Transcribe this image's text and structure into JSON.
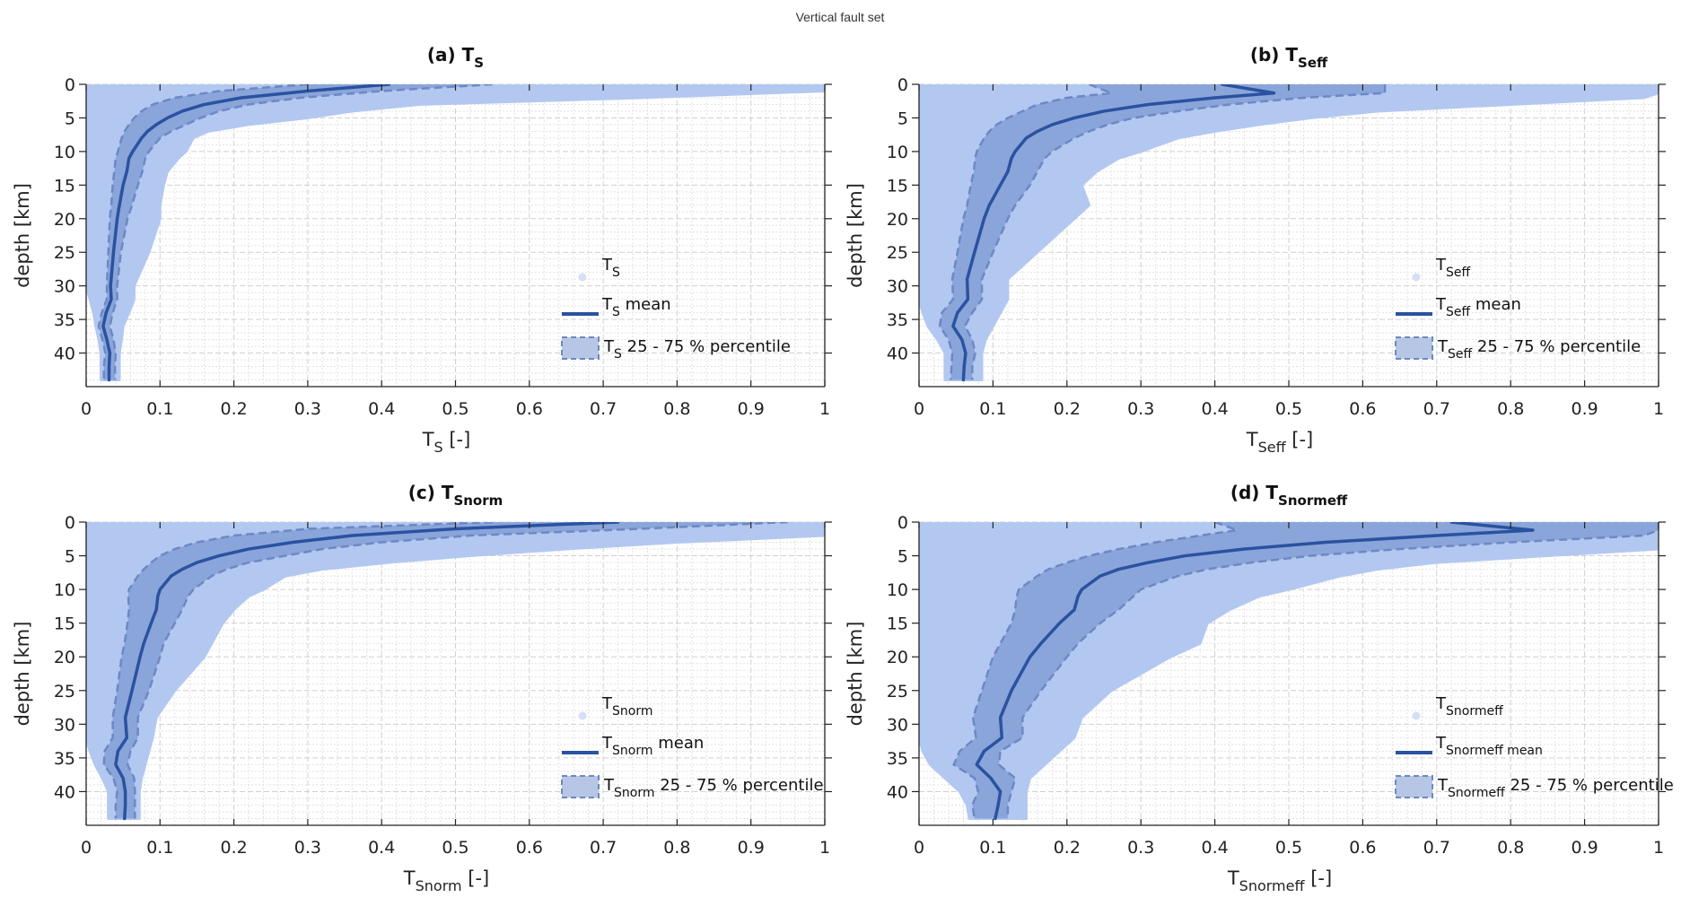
{
  "figure": {
    "suptitle": "Vertical fault set"
  },
  "colors": {
    "scatter": "#b3c8f0",
    "band": "#8aa5da",
    "band_edge": "#6d88c4",
    "mean": "#2a52a0",
    "legend_marker": "#d5e0f7",
    "legend_patch": "#b8c6e6",
    "grid_major": "#d0d0d0",
    "grid_minor": "#e2e2e2",
    "axis": "#222222"
  },
  "chart_data": [
    {
      "type": "area",
      "panel": "a",
      "title": {
        "prefix": "(a) T",
        "sub": "S"
      },
      "xlabel": {
        "main": "T",
        "sub": "S",
        "suffix": " [-]"
      },
      "ylabel": "depth [km]",
      "xlim": [
        0,
        1
      ],
      "ylim": [
        0,
        45
      ],
      "y_reversed": true,
      "xticks": [
        "0",
        "0.1",
        "0.2",
        "0.3",
        "0.4",
        "0.5",
        "0.6",
        "0.7",
        "0.8",
        "0.9",
        "1"
      ],
      "yticks": [
        "0",
        "5",
        "10",
        "15",
        "20",
        "25",
        "30",
        "35",
        "40"
      ],
      "grid": true,
      "legend": {
        "placement": "bottom-right",
        "entries": [
          {
            "main": "T",
            "sub": "S",
            "suffix": ""
          },
          {
            "main": "T",
            "sub": "S",
            "suffix": " mean"
          },
          {
            "main": "T",
            "sub": "S",
            "suffix": " 25  - 75 % percentile"
          }
        ]
      },
      "depth": [
        0,
        1,
        2,
        3,
        4,
        5,
        6,
        7,
        8,
        10,
        11,
        13,
        15,
        18,
        20,
        25,
        30,
        32,
        34,
        36,
        38,
        40,
        42,
        44
      ],
      "mean": [
        0.41,
        0.3,
        0.21,
        0.16,
        0.13,
        0.11,
        0.095,
        0.083,
        0.075,
        0.063,
        0.058,
        0.055,
        0.05,
        0.045,
        0.042,
        0.037,
        0.033,
        0.034,
        0.027,
        0.023,
        0.028,
        0.032,
        0.031,
        0.031
      ],
      "p25": [
        0.3,
        0.18,
        0.12,
        0.09,
        0.075,
        0.065,
        0.058,
        0.052,
        0.048,
        0.043,
        0.04,
        0.038,
        0.036,
        0.034,
        0.032,
        0.03,
        0.028,
        0.028,
        0.021,
        0.017,
        0.022,
        0.026,
        0.024,
        0.024
      ],
      "p75": [
        0.55,
        0.4,
        0.29,
        0.22,
        0.18,
        0.155,
        0.135,
        0.115,
        0.1,
        0.085,
        0.08,
        0.076,
        0.07,
        0.062,
        0.056,
        0.047,
        0.042,
        0.042,
        0.036,
        0.032,
        0.037,
        0.04,
        0.039,
        0.039
      ],
      "scatter_min": [
        0,
        0,
        0,
        0,
        0,
        0,
        0,
        0,
        0,
        0,
        0,
        0,
        0,
        0,
        0,
        0,
        0,
        0.005,
        0.01,
        0.013,
        0.017,
        0.02,
        0.02,
        0.02
      ],
      "scatter_max": [
        1.0,
        1.0,
        0.75,
        0.45,
        0.36,
        0.3,
        0.22,
        0.165,
        0.145,
        0.135,
        0.125,
        0.11,
        0.105,
        0.1,
        0.1,
        0.085,
        0.065,
        0.065,
        0.058,
        0.05,
        0.048,
        0.045,
        0.045,
        0.045
      ]
    },
    {
      "type": "area",
      "panel": "b",
      "title": {
        "prefix": "(b) T",
        "sub": "Seff"
      },
      "xlabel": {
        "main": "T",
        "sub": "Seff",
        "suffix": " [-]"
      },
      "ylabel": "depth [km]",
      "xlim": [
        0,
        1
      ],
      "ylim": [
        0,
        45
      ],
      "y_reversed": true,
      "xticks": [
        "0",
        "0.1",
        "0.2",
        "0.3",
        "0.4",
        "0.5",
        "0.6",
        "0.7",
        "0.8",
        "0.9",
        "1"
      ],
      "yticks": [
        "0",
        "5",
        "10",
        "15",
        "20",
        "25",
        "30",
        "35",
        "40"
      ],
      "grid": true,
      "legend": {
        "placement": "bottom-right",
        "entries": [
          {
            "main": "T",
            "sub": "Seff",
            "suffix": ""
          },
          {
            "main": "T",
            "sub": "Seff",
            "suffix": " mean"
          },
          {
            "main": "T",
            "sub": "Seff",
            "suffix": " 25  - 75 % percentile"
          }
        ]
      },
      "depth": [
        0,
        1.3,
        2,
        3,
        4,
        5,
        6,
        7,
        8,
        10,
        11,
        13,
        15,
        18,
        20,
        25,
        29,
        32,
        34,
        36,
        38,
        40,
        42,
        44
      ],
      "mean": [
        0.41,
        0.48,
        0.4,
        0.31,
        0.25,
        0.21,
        0.18,
        0.16,
        0.145,
        0.13,
        0.125,
        0.12,
        0.11,
        0.095,
        0.088,
        0.075,
        0.065,
        0.066,
        0.052,
        0.046,
        0.058,
        0.063,
        0.061,
        0.06
      ],
      "p25": [
        0.23,
        0.26,
        0.2,
        0.16,
        0.14,
        0.12,
        0.105,
        0.095,
        0.088,
        0.078,
        0.076,
        0.074,
        0.07,
        0.065,
        0.06,
        0.052,
        0.045,
        0.046,
        0.031,
        0.028,
        0.04,
        0.045,
        0.044,
        0.043
      ],
      "p75": [
        0.63,
        0.63,
        0.52,
        0.42,
        0.35,
        0.29,
        0.255,
        0.23,
        0.21,
        0.18,
        0.17,
        0.16,
        0.15,
        0.13,
        0.12,
        0.1,
        0.085,
        0.085,
        0.072,
        0.062,
        0.072,
        0.076,
        0.072,
        0.072
      ],
      "scatter_min": [
        0,
        0,
        0,
        0,
        0,
        0,
        0,
        0,
        0,
        0,
        0,
        0,
        0,
        0,
        0,
        0,
        0,
        0,
        0.005,
        0.012,
        0.025,
        0.035,
        0.035,
        0.035
      ],
      "scatter_max": [
        1.0,
        1.0,
        0.98,
        0.8,
        0.62,
        0.53,
        0.46,
        0.4,
        0.35,
        0.3,
        0.27,
        0.24,
        0.22,
        0.23,
        0.21,
        0.16,
        0.12,
        0.12,
        0.11,
        0.1,
        0.09,
        0.085,
        0.085,
        0.085
      ]
    },
    {
      "type": "area",
      "panel": "c",
      "title": {
        "prefix": "(c) T",
        "sub": "Snorm"
      },
      "xlabel": {
        "main": "T",
        "sub": "Snorm",
        "suffix": " [-]"
      },
      "ylabel": "depth [km]",
      "xlim": [
        0,
        1
      ],
      "ylim": [
        0,
        45
      ],
      "y_reversed": true,
      "xticks": [
        "0",
        "0.1",
        "0.2",
        "0.3",
        "0.4",
        "0.5",
        "0.6",
        "0.7",
        "0.8",
        "0.9",
        "1"
      ],
      "yticks": [
        "0",
        "5",
        "10",
        "15",
        "20",
        "25",
        "30",
        "35",
        "40"
      ],
      "grid": true,
      "legend": {
        "placement": "bottom-right",
        "entries": [
          {
            "main": "T",
            "sub": "Snorm",
            "suffix": ""
          },
          {
            "main": "T",
            "sub": "Snorm",
            "suffix": " mean"
          },
          {
            "main": "T",
            "sub": "Snorm",
            "suffix": " 25  - 75 % percentile"
          }
        ]
      },
      "depth": [
        0,
        1,
        2,
        3,
        4,
        5,
        6,
        7,
        8,
        10,
        11,
        13,
        15,
        18,
        20,
        25,
        29,
        32,
        34,
        36,
        38,
        40,
        42,
        44
      ],
      "mean": [
        0.72,
        0.5,
        0.36,
        0.28,
        0.22,
        0.18,
        0.15,
        0.13,
        0.115,
        0.1,
        0.097,
        0.095,
        0.088,
        0.078,
        0.073,
        0.062,
        0.053,
        0.055,
        0.043,
        0.04,
        0.05,
        0.053,
        0.053,
        0.052
      ],
      "p25": [
        0.55,
        0.3,
        0.2,
        0.15,
        0.12,
        0.1,
        0.088,
        0.078,
        0.07,
        0.058,
        0.057,
        0.058,
        0.056,
        0.052,
        0.048,
        0.042,
        0.036,
        0.036,
        0.025,
        0.024,
        0.037,
        0.042,
        0.04,
        0.04
      ],
      "p75": [
        0.95,
        0.75,
        0.52,
        0.4,
        0.32,
        0.27,
        0.22,
        0.19,
        0.17,
        0.145,
        0.138,
        0.13,
        0.12,
        0.105,
        0.1,
        0.085,
        0.07,
        0.07,
        0.06,
        0.056,
        0.065,
        0.066,
        0.066,
        0.066
      ],
      "scatter_min": [
        0,
        0,
        0,
        0,
        0,
        0,
        0,
        0,
        0,
        0,
        0,
        0,
        0,
        0,
        0,
        0,
        0,
        0,
        0.005,
        0.012,
        0.022,
        0.03,
        0.03,
        0.03
      ],
      "scatter_max": [
        1.0,
        1.0,
        1.0,
        0.8,
        0.65,
        0.52,
        0.41,
        0.32,
        0.27,
        0.24,
        0.22,
        0.2,
        0.185,
        0.17,
        0.16,
        0.12,
        0.095,
        0.09,
        0.085,
        0.08,
        0.075,
        0.072,
        0.072,
        0.072
      ]
    },
    {
      "type": "area",
      "panel": "d",
      "title": {
        "prefix": "(d) T",
        "sub": "Snormeff"
      },
      "xlabel": {
        "main": "T",
        "sub": "Snormeff",
        "suffix": " [-]"
      },
      "ylabel": "depth [km]",
      "xlim": [
        0,
        1
      ],
      "ylim": [
        0,
        45
      ],
      "y_reversed": true,
      "xticks": [
        "0",
        "0.1",
        "0.2",
        "0.3",
        "0.4",
        "0.5",
        "0.6",
        "0.7",
        "0.8",
        "0.9",
        "1"
      ],
      "yticks": [
        "0",
        "5",
        "10",
        "15",
        "20",
        "25",
        "30",
        "35",
        "40"
      ],
      "grid": true,
      "legend": {
        "placement": "bottom-right",
        "entries": [
          {
            "main": "T",
            "sub": "Snormeff",
            "suffix": ""
          },
          {
            "main": "T",
            "sub": "Snormeff mean",
            "suffix": ""
          },
          {
            "main": "T",
            "sub": "Snormeff",
            "suffix": " 25 - 75 % percentile"
          }
        ]
      },
      "depth": [
        0,
        1.2,
        2,
        3,
        4,
        5,
        6,
        7,
        8,
        10,
        11,
        13,
        15,
        18,
        20,
        25,
        29,
        32,
        34,
        36,
        38,
        40,
        42,
        44
      ],
      "mean": [
        0.72,
        0.83,
        0.7,
        0.55,
        0.44,
        0.36,
        0.31,
        0.27,
        0.245,
        0.22,
        0.215,
        0.21,
        0.19,
        0.165,
        0.15,
        0.125,
        0.11,
        0.112,
        0.088,
        0.078,
        0.097,
        0.11,
        0.107,
        0.103
      ],
      "p25": [
        0.4,
        0.43,
        0.38,
        0.32,
        0.27,
        0.23,
        0.2,
        0.175,
        0.16,
        0.135,
        0.132,
        0.13,
        0.125,
        0.11,
        0.1,
        0.085,
        0.073,
        0.077,
        0.055,
        0.047,
        0.075,
        0.08,
        0.072,
        0.075
      ],
      "p75": [
        1.0,
        1.0,
        0.98,
        0.8,
        0.65,
        0.53,
        0.45,
        0.39,
        0.35,
        0.3,
        0.29,
        0.27,
        0.245,
        0.215,
        0.2,
        0.165,
        0.14,
        0.14,
        0.11,
        0.108,
        0.13,
        0.125,
        0.12,
        0.12
      ],
      "scatter_min": [
        0,
        0,
        0,
        0,
        0,
        0,
        0,
        0,
        0,
        0,
        0,
        0,
        0,
        0,
        0,
        0,
        0,
        0,
        0.005,
        0.015,
        0.035,
        0.055,
        0.065,
        0.068
      ],
      "scatter_max": [
        1.0,
        1.0,
        1.0,
        1.0,
        1.0,
        0.85,
        0.7,
        0.62,
        0.57,
        0.5,
        0.46,
        0.42,
        0.39,
        0.38,
        0.34,
        0.26,
        0.22,
        0.21,
        0.19,
        0.17,
        0.15,
        0.145,
        0.145,
        0.145
      ]
    }
  ]
}
